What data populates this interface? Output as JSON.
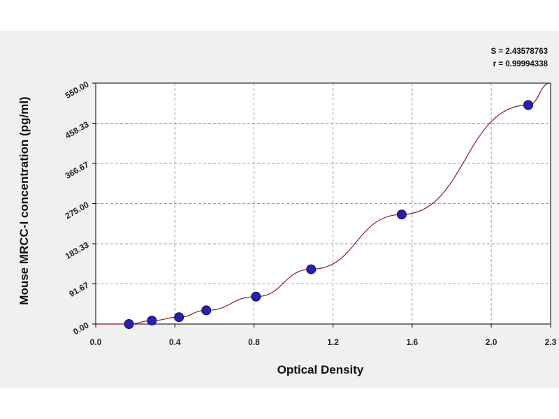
{
  "chart_data": {
    "type": "scatter",
    "title": "",
    "xlabel": "Optical Density",
    "ylabel": "Mouse MRCC-I concentration (pg/ml)",
    "xlim": [
      0.0,
      2.3
    ],
    "ylim": [
      0.0,
      550.0
    ],
    "x_ticks": [
      "0.0",
      "0.4",
      "0.8",
      "1.2",
      "1.6",
      "2.0",
      "2.3"
    ],
    "y_ticks": [
      "0.00",
      "91.67",
      "183.33",
      "275.00",
      "366.67",
      "458.33",
      "550.00"
    ],
    "x_tick_values": [
      0.0,
      0.4,
      0.8,
      1.2,
      1.6,
      2.0,
      2.3
    ],
    "y_tick_values": [
      0.0,
      91.67,
      183.33,
      275.0,
      366.67,
      458.33,
      550.0
    ],
    "grid": true,
    "series": [
      {
        "x": [
          0.168,
          0.284,
          0.421,
          0.559,
          0.81,
          1.089,
          1.547,
          2.187
        ],
        "y": [
          0.0,
          7.8,
          15.6,
          31.25,
          62.5,
          125.0,
          250.0,
          500.0
        ]
      }
    ],
    "fit_curve": true,
    "stats": {
      "s": "S = 2.43578763",
      "r": "r = 0.99994338"
    },
    "colors": {
      "panel_background": "#f0f0f0",
      "plot_background": "#ffffff",
      "curve": "#8b1a1a",
      "marker_fill": "#2a1fb0",
      "marker_stroke": "#120a6a",
      "grid": "#9a9a9a"
    }
  }
}
